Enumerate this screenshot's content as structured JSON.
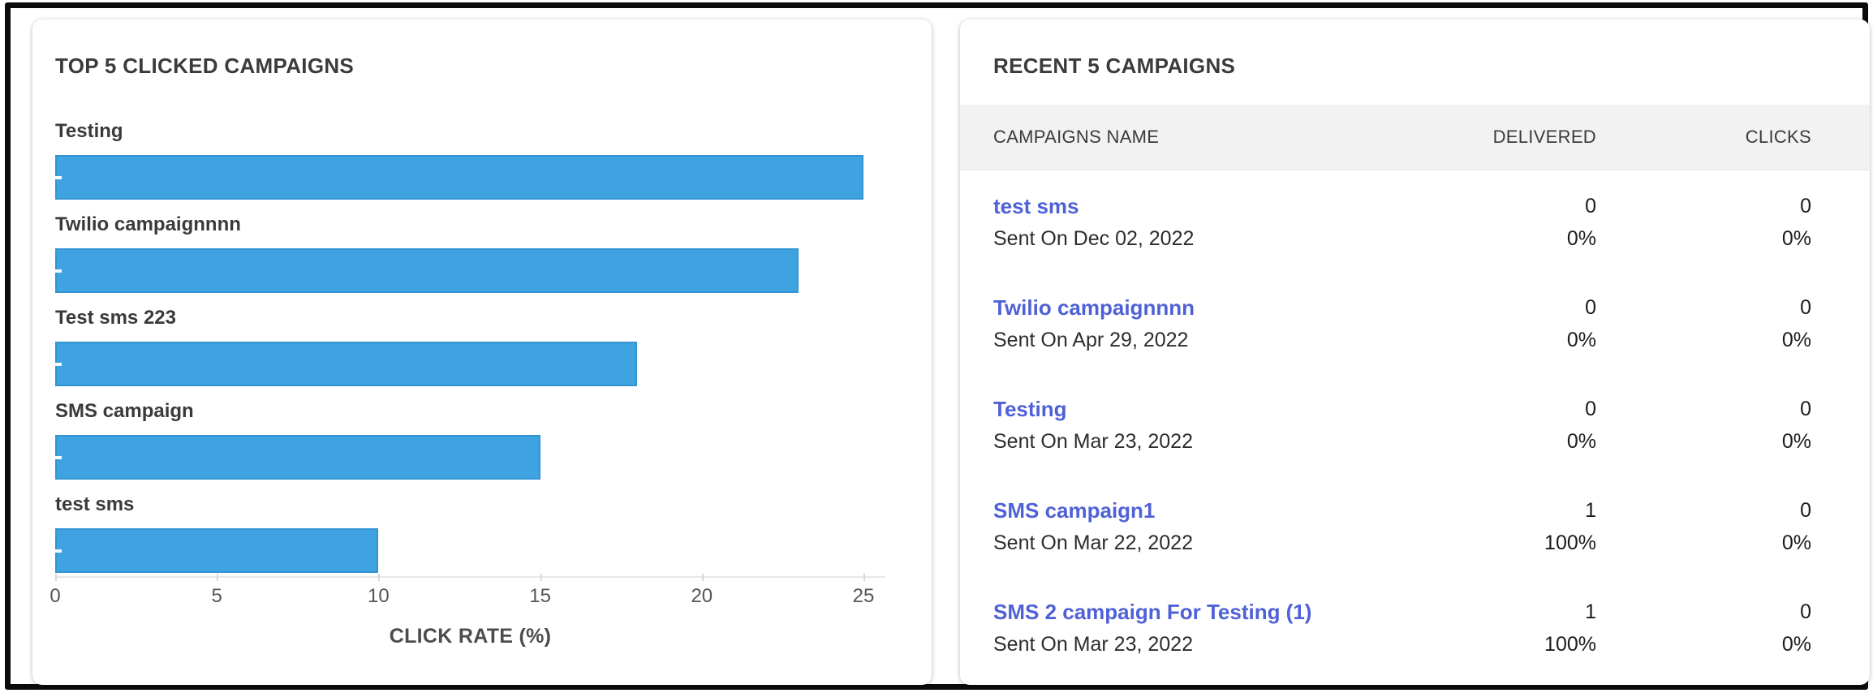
{
  "left_panel": {
    "title": "TOP 5 CLICKED CAMPAIGNS"
  },
  "chart_data": {
    "type": "bar",
    "orientation": "horizontal",
    "title": "TOP 5 CLICKED CAMPAIGNS",
    "categories": [
      "Testing",
      "Twilio campaignnnn",
      "Test sms 223",
      "SMS campaign",
      "test sms"
    ],
    "values": [
      25,
      23,
      18,
      15,
      10
    ],
    "xlabel": "CLICK RATE (%)",
    "ylabel": "",
    "xlim": [
      0,
      25
    ],
    "xticks": [
      0,
      5,
      10,
      15,
      20,
      25
    ],
    "grid": false,
    "legend": false,
    "bar_color": "#3fa2e1"
  },
  "right_panel": {
    "title": "RECENT 5 CAMPAIGNS",
    "table": {
      "columns": [
        "CAMPAIGNS NAME",
        "DELIVERED",
        "CLICKS"
      ],
      "rows": [
        {
          "name": "test sms",
          "sent_on": "Sent On Dec 02, 2022",
          "delivered": "0",
          "delivered_pct": "0%",
          "clicks": "0",
          "clicks_pct": "0%"
        },
        {
          "name": "Twilio campaignnnn",
          "sent_on": "Sent On Apr 29, 2022",
          "delivered": "0",
          "delivered_pct": "0%",
          "clicks": "0",
          "clicks_pct": "0%"
        },
        {
          "name": "Testing",
          "sent_on": "Sent On Mar 23, 2022",
          "delivered": "0",
          "delivered_pct": "0%",
          "clicks": "0",
          "clicks_pct": "0%"
        },
        {
          "name": "SMS campaign1",
          "sent_on": "Sent On Mar 22, 2022",
          "delivered": "1",
          "delivered_pct": "100%",
          "clicks": "0",
          "clicks_pct": "0%"
        },
        {
          "name": "SMS 2 campaign For Testing (1)",
          "sent_on": "Sent On Mar 23, 2022",
          "delivered": "1",
          "delivered_pct": "100%",
          "clicks": "0",
          "clicks_pct": "0%"
        }
      ]
    }
  },
  "colors": {
    "bar": "#3fa2e1",
    "link": "#4f61d6",
    "table_header_bg": "#f2f2f2",
    "frame_border": "#0b0b0b"
  }
}
